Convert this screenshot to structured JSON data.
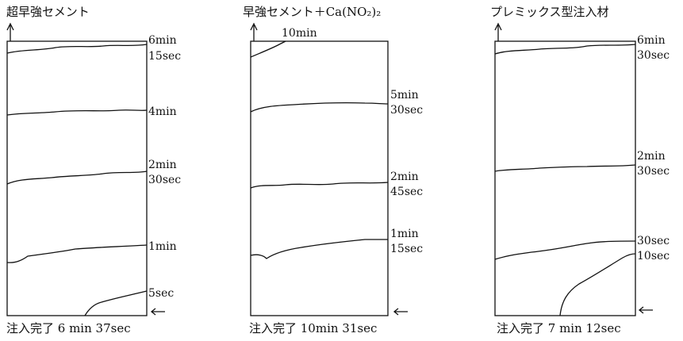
{
  "figure": {
    "panels": [
      {
        "title": "超早強セメント",
        "footer": "注入完了 6 min 37sec",
        "labels": [
          {
            "text": "6min"
          },
          {
            "text": "15sec"
          },
          {
            "text": "4min"
          },
          {
            "text": "2min"
          },
          {
            "text": "30sec"
          },
          {
            "text": "1min"
          },
          {
            "text": "5sec"
          }
        ]
      },
      {
        "title": "早強セメント＋Ca(NO₂)₂",
        "footer": "注入完了 10min 31sec",
        "labels": [
          {
            "text": "10min"
          },
          {
            "text": "5min"
          },
          {
            "text": "30sec"
          },
          {
            "text": "2min"
          },
          {
            "text": "45sec"
          },
          {
            "text": "1min"
          },
          {
            "text": "15sec"
          }
        ]
      },
      {
        "title": "プレミックス型注入材",
        "footer": "注入完了 7 min 12sec",
        "labels": [
          {
            "text": "6min"
          },
          {
            "text": "30sec"
          },
          {
            "text": "2min"
          },
          {
            "text": "30sec"
          },
          {
            "text": "30sec"
          },
          {
            "text": "10sec"
          }
        ]
      }
    ]
  }
}
